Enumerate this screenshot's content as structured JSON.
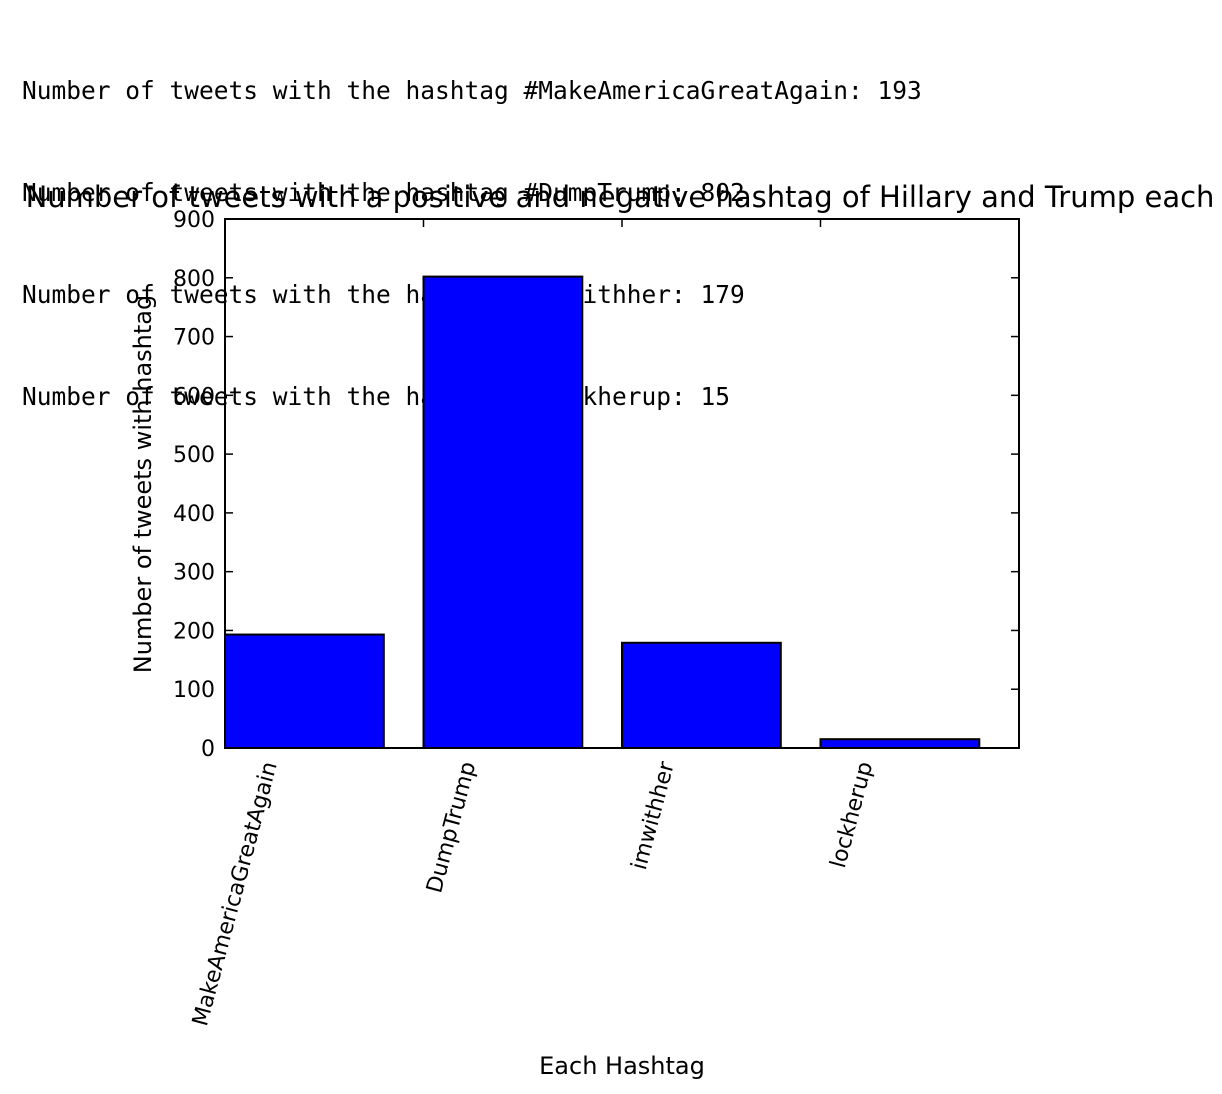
{
  "console": {
    "lines": [
      "Number of tweets with the hashtag #MakeAmericaGreatAgain: 193",
      "Number of tweets with the hashtag #DumpTrump: 802",
      "Number of tweets with the hashtag #imwithher: 179",
      "Number of tweets with the hashtag #lockherup: 15"
    ]
  },
  "chart_data": {
    "type": "bar",
    "title": "Number of tweets with a positive and negative hashtag of Hillary and Trump each",
    "xlabel": "Each Hashtag",
    "ylabel": "Number of tweets with hashtag",
    "categories": [
      "MakeAmericaGreatAgain",
      "DumpTrump",
      "imwithher",
      "lockherup"
    ],
    "values": [
      193,
      802,
      179,
      15
    ],
    "ylim": [
      0,
      900
    ],
    "yticks": [
      "0",
      "100",
      "200",
      "300",
      "400",
      "500",
      "600",
      "700",
      "800",
      "900"
    ],
    "bar_color": "#0000ff",
    "grid": false,
    "legend": "none"
  }
}
